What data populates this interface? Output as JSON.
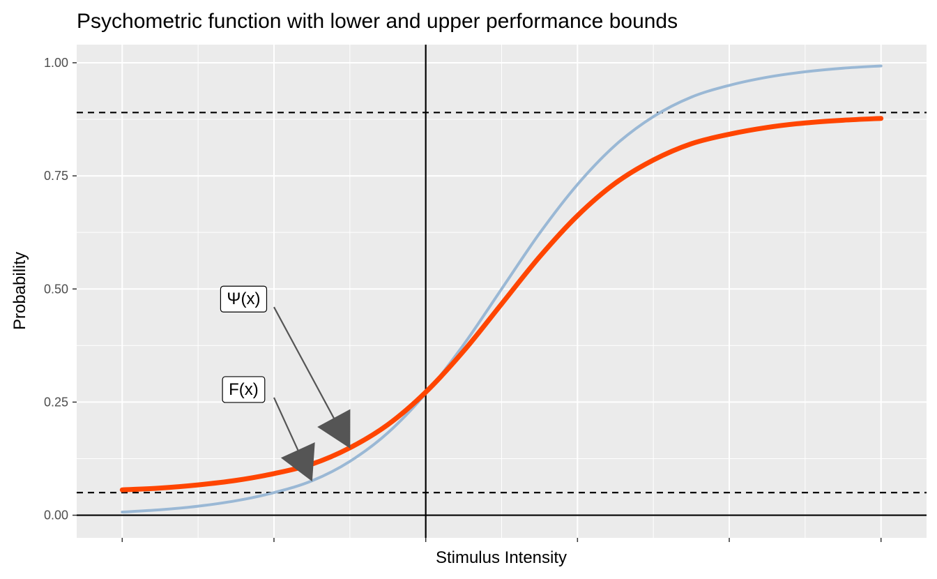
{
  "chart_data": {
    "type": "line",
    "title": "Psychometric function with lower and upper performance bounds",
    "xlabel": "Stimulus Intensity",
    "ylabel": "Probability",
    "xlim": [
      -2.8,
      2.8
    ],
    "ylim": [
      -0.05,
      1.04
    ],
    "x_ticks": [
      -2.5,
      -1.5,
      -0.5,
      0.5,
      1.5,
      2.5
    ],
    "x_minor_ticks": [
      -2.0,
      -1.0,
      0.0,
      1.0,
      2.0
    ],
    "x_tick_labels_shown": false,
    "y_ticks": [
      0.0,
      0.25,
      0.5,
      0.75,
      1.0
    ],
    "y_tick_labels": [
      "0.00",
      "0.25",
      "0.50",
      "0.75",
      "1.00"
    ],
    "grid": true,
    "background": "#ebebeb",
    "legend": "none",
    "series": [
      {
        "role": "F(x)",
        "color": "#9ab8d5",
        "stroke": "thin",
        "x": [
          -2.5,
          -2.25,
          -2.0,
          -1.75,
          -1.5,
          -1.25,
          -1.0,
          -0.75,
          -0.5,
          -0.25,
          0.0,
          0.25,
          0.5,
          0.75,
          1.0,
          1.25,
          1.5,
          1.75,
          2.0,
          2.25,
          2.5
        ],
        "y": [
          0.007,
          0.012,
          0.02,
          0.032,
          0.05,
          0.076,
          0.119,
          0.182,
          0.269,
          0.377,
          0.5,
          0.623,
          0.731,
          0.818,
          0.881,
          0.924,
          0.95,
          0.968,
          0.98,
          0.988,
          0.993
        ]
      },
      {
        "role": "Ψ(x)",
        "color": "#ff4500",
        "stroke": "thick",
        "x": [
          -2.5,
          -2.25,
          -2.0,
          -1.75,
          -1.5,
          -1.25,
          -1.0,
          -0.75,
          -0.5,
          -0.25,
          0.0,
          0.25,
          0.5,
          0.75,
          1.0,
          1.25,
          1.5,
          1.75,
          2.0,
          2.25,
          2.5
        ],
        "y": [
          0.056,
          0.06,
          0.067,
          0.077,
          0.092,
          0.113,
          0.149,
          0.2,
          0.272,
          0.363,
          0.467,
          0.571,
          0.662,
          0.734,
          0.785,
          0.821,
          0.842,
          0.857,
          0.867,
          0.873,
          0.877
        ]
      }
    ],
    "hlines": [
      {
        "y": 0.05,
        "style": "dashed",
        "color": "#000000"
      },
      {
        "y": 0.89,
        "style": "dashed",
        "color": "#000000"
      },
      {
        "y": 0.0,
        "style": "solid",
        "color": "#000000"
      }
    ],
    "vlines": [
      {
        "x": -0.5,
        "style": "solid",
        "color": "#000000"
      }
    ],
    "annotations": [
      {
        "text": "Ψ(x)",
        "label_x": -1.7,
        "label_y": 0.48,
        "arrow_from": [
          -1.5,
          0.46
        ],
        "arrow_to": [
          -1.0,
          0.149
        ]
      },
      {
        "text": "F(x)",
        "label_x": -1.7,
        "label_y": 0.28,
        "arrow_from": [
          -1.5,
          0.26
        ],
        "arrow_to": [
          -1.25,
          0.076
        ]
      }
    ]
  }
}
